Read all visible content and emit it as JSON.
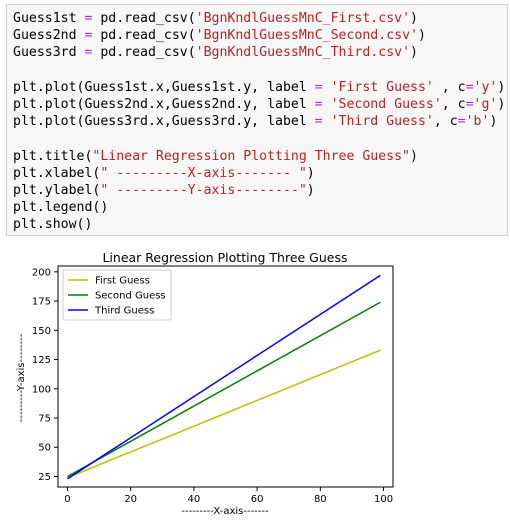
{
  "code_cell": {
    "lines": [
      [
        {
          "t": "Guess1st ",
          "c": "plain"
        },
        {
          "t": "=",
          "c": "op"
        },
        {
          "t": " pd.read_csv(",
          "c": "plain"
        },
        {
          "t": "'BgnKndlGuessMnC_First.csv'",
          "c": "str"
        },
        {
          "t": ")",
          "c": "plain"
        }
      ],
      [
        {
          "t": "Guess2nd ",
          "c": "plain"
        },
        {
          "t": "=",
          "c": "op"
        },
        {
          "t": " pd.read_csv(",
          "c": "plain"
        },
        {
          "t": "'BgnKndlGuessMnC_Second.csv'",
          "c": "str"
        },
        {
          "t": ")",
          "c": "plain"
        }
      ],
      [
        {
          "t": "Guess3rd ",
          "c": "plain"
        },
        {
          "t": "=",
          "c": "op"
        },
        {
          "t": " pd.read_csv(",
          "c": "plain"
        },
        {
          "t": "'BgnKndlGuessMnC_Third.csv'",
          "c": "str"
        },
        {
          "t": ")",
          "c": "plain"
        }
      ],
      [],
      [
        {
          "t": "plt.plot(Guess1st.x,Guess1st.y, label ",
          "c": "plain"
        },
        {
          "t": "=",
          "c": "op"
        },
        {
          "t": " ",
          "c": "plain"
        },
        {
          "t": "'First Guess'",
          "c": "str"
        },
        {
          "t": " , c",
          "c": "plain"
        },
        {
          "t": "=",
          "c": "op"
        },
        {
          "t": "'y'",
          "c": "str"
        },
        {
          "t": ")",
          "c": "plain"
        }
      ],
      [
        {
          "t": "plt.plot(Guess2nd.x,Guess2nd.y, label ",
          "c": "plain"
        },
        {
          "t": "=",
          "c": "op"
        },
        {
          "t": " ",
          "c": "plain"
        },
        {
          "t": "'Second Guess'",
          "c": "str"
        },
        {
          "t": ", c",
          "c": "plain"
        },
        {
          "t": "=",
          "c": "op"
        },
        {
          "t": "'g'",
          "c": "str"
        },
        {
          "t": ")",
          "c": "plain"
        }
      ],
      [
        {
          "t": "plt.plot(Guess3rd.x,Guess3rd.y, label ",
          "c": "plain"
        },
        {
          "t": "=",
          "c": "op"
        },
        {
          "t": " ",
          "c": "plain"
        },
        {
          "t": "'Third Guess'",
          "c": "str"
        },
        {
          "t": ", c",
          "c": "plain"
        },
        {
          "t": "=",
          "c": "op"
        },
        {
          "t": "'b'",
          "c": "str"
        },
        {
          "t": ")",
          "c": "plain"
        }
      ],
      [],
      [
        {
          "t": "plt.title(",
          "c": "plain"
        },
        {
          "t": "\"Linear Regression Plotting Three Guess\"",
          "c": "str"
        },
        {
          "t": ")",
          "c": "plain"
        }
      ],
      [
        {
          "t": "plt.xlabel(",
          "c": "plain"
        },
        {
          "t": "\" ---------X-axis------- \"",
          "c": "str"
        },
        {
          "t": ")",
          "c": "plain"
        }
      ],
      [
        {
          "t": "plt.ylabel(",
          "c": "plain"
        },
        {
          "t": "\" ---------Y-axis--------\"",
          "c": "str"
        },
        {
          "t": ")",
          "c": "plain"
        }
      ],
      [
        {
          "t": "plt.legend()",
          "c": "plain"
        }
      ],
      [
        {
          "t": "plt.show()",
          "c": "plain"
        }
      ]
    ]
  },
  "chart_data": {
    "type": "line",
    "title": "Linear Regression Plotting Three Guess",
    "xlabel": "---------X-axis-------",
    "ylabel": "---------Y-axis--------",
    "xlim": [
      -3,
      103
    ],
    "ylim": [
      16,
      205
    ],
    "xticks": [
      0,
      20,
      40,
      60,
      80,
      100
    ],
    "yticks": [
      25,
      50,
      75,
      100,
      125,
      150,
      175,
      200
    ],
    "grid": false,
    "legend_position": "top-left",
    "series": [
      {
        "name": "First Guess",
        "color": "#bfbf00",
        "x": [
          0,
          99
        ],
        "y": [
          24,
          133
        ]
      },
      {
        "name": "Second Guess",
        "color": "#008000",
        "x": [
          0,
          99
        ],
        "y": [
          25,
          174
        ]
      },
      {
        "name": "Third Guess",
        "color": "#0000ff",
        "x": [
          0,
          99
        ],
        "y": [
          23,
          197
        ]
      }
    ]
  }
}
